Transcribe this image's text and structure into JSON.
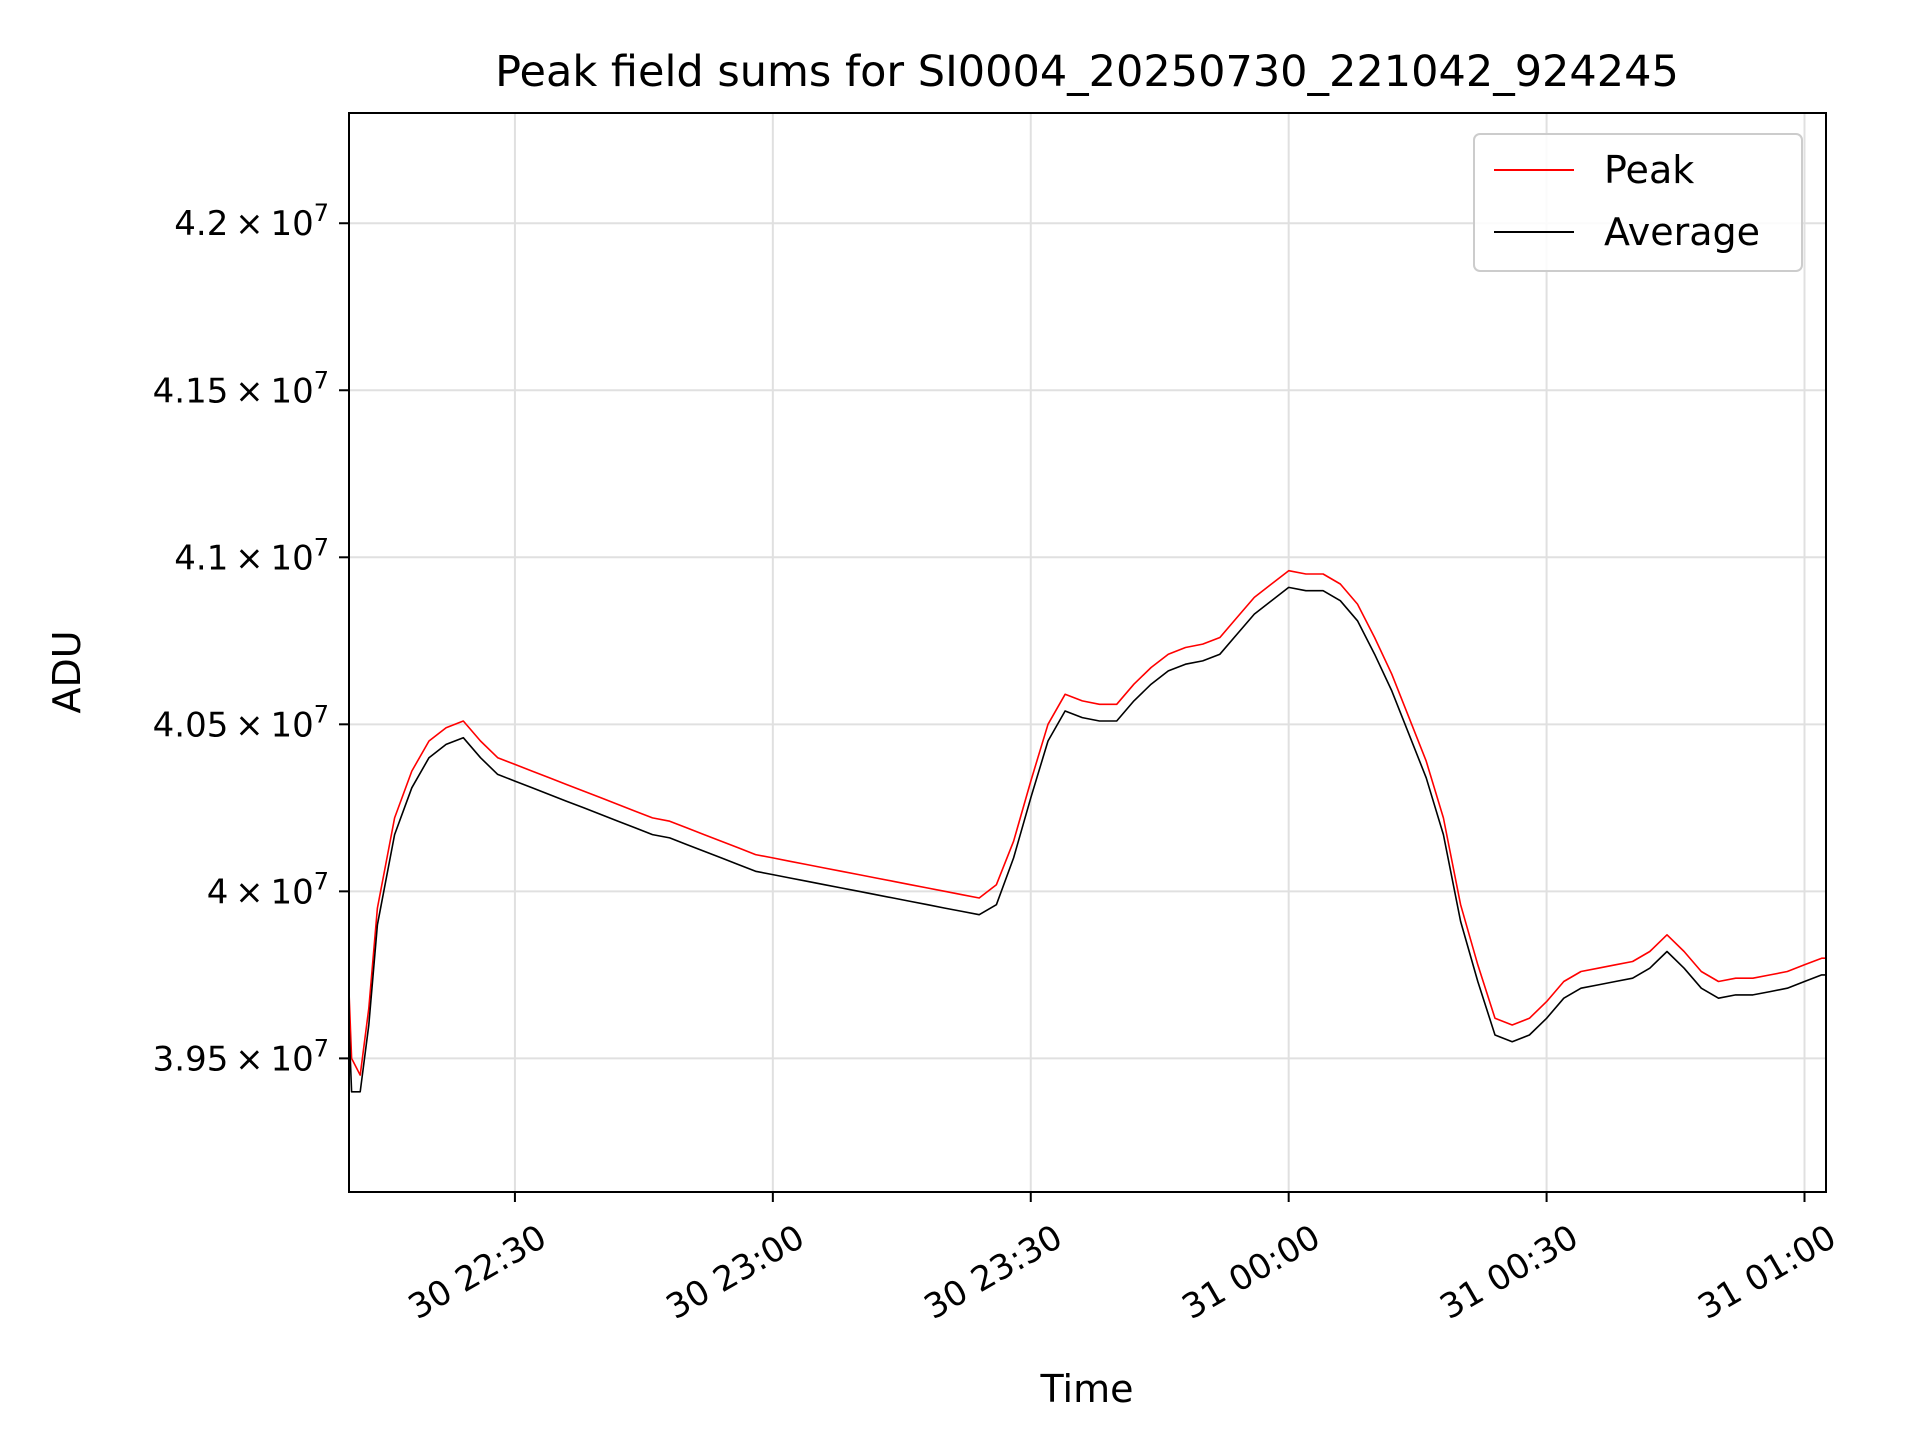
{
  "chart_data": {
    "type": "line",
    "title": "Peak field sums for SI0004_20250730_221042_924245",
    "xlabel": "Time",
    "ylabel": "ADU",
    "xlim": [
      "2025-07-30 22:10:42",
      "2025-07-31 01:02:30"
    ],
    "ylim": [
      39100000,
      42330000
    ],
    "grid": true,
    "legend_position": "top-right",
    "x_ticks": [
      {
        "value": "2025-07-30 22:30",
        "label": "30 22:30"
      },
      {
        "value": "2025-07-30 23:00",
        "label": "30 23:00"
      },
      {
        "value": "2025-07-30 23:30",
        "label": "30 23:30"
      },
      {
        "value": "2025-07-31 00:00",
        "label": "31 00:00"
      },
      {
        "value": "2025-07-31 00:30",
        "label": "31 00:30"
      },
      {
        "value": "2025-07-31 01:00",
        "label": "31 01:00"
      }
    ],
    "y_ticks": [
      {
        "value": 39500000,
        "mantissa": "3.95",
        "exponent": "7"
      },
      {
        "value": 40000000,
        "mantissa": "4",
        "exponent": "7"
      },
      {
        "value": 40500000,
        "mantissa": "4.05",
        "exponent": "7"
      },
      {
        "value": 41000000,
        "mantissa": "4.1",
        "exponent": "7"
      },
      {
        "value": 41500000,
        "mantissa": "4.15",
        "exponent": "7"
      },
      {
        "value": 42000000,
        "mantissa": "4.2",
        "exponent": "7"
      }
    ],
    "x": [
      "2025-07-30 22:10:42",
      "2025-07-30 22:11:00",
      "2025-07-30 22:12:00",
      "2025-07-30 22:13:00",
      "2025-07-30 22:14:00",
      "2025-07-30 22:16:00",
      "2025-07-30 22:18:00",
      "2025-07-30 22:20:00",
      "2025-07-30 22:22:00",
      "2025-07-30 22:24:00",
      "2025-07-30 22:26:00",
      "2025-07-30 22:28:00",
      "2025-07-30 22:30:00",
      "2025-07-30 22:32:00",
      "2025-07-30 22:34:00",
      "2025-07-30 22:36:00",
      "2025-07-30 22:38:00",
      "2025-07-30 22:40:00",
      "2025-07-30 22:42:00",
      "2025-07-30 22:44:00",
      "2025-07-30 22:46:00",
      "2025-07-30 22:48:00",
      "2025-07-30 22:50:00",
      "2025-07-30 22:52:00",
      "2025-07-30 22:54:00",
      "2025-07-30 22:56:00",
      "2025-07-30 22:58:00",
      "2025-07-30 23:00:00",
      "2025-07-30 23:02:00",
      "2025-07-30 23:04:00",
      "2025-07-30 23:06:00",
      "2025-07-30 23:08:00",
      "2025-07-30 23:10:00",
      "2025-07-30 23:12:00",
      "2025-07-30 23:14:00",
      "2025-07-30 23:16:00",
      "2025-07-30 23:18:00",
      "2025-07-30 23:20:00",
      "2025-07-30 23:22:00",
      "2025-07-30 23:24:00",
      "2025-07-30 23:26:00",
      "2025-07-30 23:28:00",
      "2025-07-30 23:30:00",
      "2025-07-30 23:32:00",
      "2025-07-30 23:34:00",
      "2025-07-30 23:36:00",
      "2025-07-30 23:38:00",
      "2025-07-30 23:40:00",
      "2025-07-30 23:42:00",
      "2025-07-30 23:44:00",
      "2025-07-30 23:46:00",
      "2025-07-30 23:48:00",
      "2025-07-30 23:50:00",
      "2025-07-30 23:52:00",
      "2025-07-30 23:54:00",
      "2025-07-30 23:56:00",
      "2025-07-30 23:58:00",
      "2025-07-31 00:00:00",
      "2025-07-31 00:02:00",
      "2025-07-31 00:04:00",
      "2025-07-31 00:06:00",
      "2025-07-31 00:08:00",
      "2025-07-31 00:10:00",
      "2025-07-31 00:12:00",
      "2025-07-31 00:14:00",
      "2025-07-31 00:16:00",
      "2025-07-31 00:18:00",
      "2025-07-31 00:20:00",
      "2025-07-31 00:22:00",
      "2025-07-31 00:24:00",
      "2025-07-31 00:26:00",
      "2025-07-31 00:28:00",
      "2025-07-31 00:30:00",
      "2025-07-31 00:32:00",
      "2025-07-31 00:34:00",
      "2025-07-31 00:36:00",
      "2025-07-31 00:38:00",
      "2025-07-31 00:40:00",
      "2025-07-31 00:42:00",
      "2025-07-31 00:44:00",
      "2025-07-31 00:46:00",
      "2025-07-31 00:48:00",
      "2025-07-31 00:50:00",
      "2025-07-31 00:52:00",
      "2025-07-31 00:54:00",
      "2025-07-31 00:56:00",
      "2025-07-31 00:58:00",
      "2025-07-31 01:00:00",
      "2025-07-31 01:02:00",
      "2025-07-31 01:02:30"
    ],
    "series": [
      {
        "name": "Peak",
        "color": "#ff0000",
        "values": [
          39700000,
          39500000,
          39450000,
          39650000,
          39950000,
          40220000,
          40360000,
          40450000,
          40490000,
          40510000,
          40450000,
          40400000,
          40380000,
          40360000,
          40340000,
          40320000,
          40300000,
          40280000,
          40260000,
          40240000,
          40220000,
          40210000,
          40190000,
          40170000,
          40150000,
          40130000,
          40110000,
          40100000,
          40090000,
          40080000,
          40070000,
          40060000,
          40050000,
          40040000,
          40030000,
          40020000,
          40010000,
          40000000,
          39990000,
          39980000,
          40020000,
          40150000,
          40330000,
          40500000,
          40590000,
          40570000,
          40560000,
          40560000,
          40620000,
          40670000,
          40710000,
          40730000,
          40740000,
          40760000,
          40820000,
          40880000,
          40920000,
          40960000,
          40950000,
          40950000,
          40920000,
          40860000,
          40760000,
          40650000,
          40520000,
          40390000,
          40220000,
          39960000,
          39780000,
          39620000,
          39600000,
          39620000,
          39670000,
          39730000,
          39760000,
          39770000,
          39780000,
          39790000,
          39820000,
          39870000,
          39820000,
          39760000,
          39730000,
          39740000,
          39740000,
          39750000,
          39760000,
          39780000,
          39800000,
          39800000
        ]
      },
      {
        "name": "Average",
        "color": "#000000",
        "values": [
          39600000,
          39400000,
          39400000,
          39600000,
          39900000,
          40170000,
          40310000,
          40400000,
          40440000,
          40460000,
          40400000,
          40350000,
          40330000,
          40310000,
          40290000,
          40270000,
          40250000,
          40230000,
          40210000,
          40190000,
          40170000,
          40160000,
          40140000,
          40120000,
          40100000,
          40080000,
          40060000,
          40050000,
          40040000,
          40030000,
          40020000,
          40010000,
          40000000,
          39990000,
          39980000,
          39970000,
          39960000,
          39950000,
          39940000,
          39930000,
          39960000,
          40100000,
          40280000,
          40450000,
          40540000,
          40520000,
          40510000,
          40510000,
          40570000,
          40620000,
          40660000,
          40680000,
          40690000,
          40710000,
          40770000,
          40830000,
          40870000,
          40910000,
          40900000,
          40900000,
          40870000,
          40810000,
          40710000,
          40600000,
          40470000,
          40340000,
          40170000,
          39910000,
          39730000,
          39570000,
          39550000,
          39570000,
          39620000,
          39680000,
          39710000,
          39720000,
          39730000,
          39740000,
          39770000,
          39820000,
          39770000,
          39710000,
          39680000,
          39690000,
          39690000,
          39700000,
          39710000,
          39730000,
          39750000,
          39750000
        ]
      }
    ]
  }
}
